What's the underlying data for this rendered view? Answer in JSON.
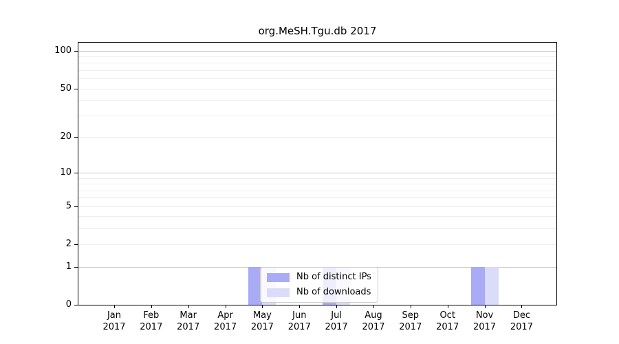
{
  "chart_data": {
    "type": "bar",
    "title": "org.MeSH.Tgu.db 2017",
    "categories": [
      "Jan",
      "Feb",
      "Mar",
      "Apr",
      "May",
      "Jun",
      "Jul",
      "Aug",
      "Sep",
      "Oct",
      "Nov",
      "Dec"
    ],
    "x_tick_year": "2017",
    "series": [
      {
        "name": "Nb of distinct IPs",
        "color": "#a9abf6",
        "values": [
          0,
          0,
          0,
          0,
          1,
          0,
          1,
          0,
          0,
          0,
          1,
          0
        ]
      },
      {
        "name": "Nb of downloads",
        "color": "#dadcf9",
        "values": [
          0,
          0,
          0,
          0,
          1,
          0,
          1,
          0,
          0,
          0,
          1,
          0
        ]
      }
    ],
    "y_axis": {
      "scale": "log1p",
      "tick_values": [
        0,
        1,
        2,
        5,
        10,
        20,
        50,
        100
      ],
      "major_gridlines": [
        1,
        10,
        100
      ],
      "minor_gridlines": [
        2,
        3,
        4,
        5,
        6,
        7,
        8,
        9,
        20,
        30,
        40,
        50,
        60,
        70,
        80,
        90
      ],
      "ylim": [
        0,
        115
      ]
    },
    "legend": {
      "position": "lower center",
      "frame_color": "#cccccc"
    },
    "layout": {
      "grid": "horizontal only",
      "bar_arrangement": "pairs side by side centered on month tick"
    },
    "colors": {
      "axis": "#000000",
      "grid_major": "#c6c6c6",
      "grid_minor": "#ededed",
      "background": "#ffffff"
    }
  }
}
